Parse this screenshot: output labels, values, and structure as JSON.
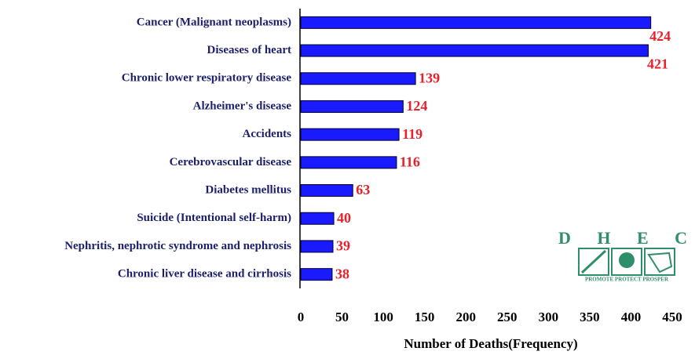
{
  "chart_data": {
    "type": "bar",
    "orientation": "horizontal",
    "categories": [
      "Cancer (Malignant neoplasms)",
      "Diseases of heart",
      "Chronic lower respiratory disease",
      "Alzheimer's disease",
      "Accidents",
      "Cerebrovascular disease",
      "Diabetes mellitus",
      "Suicide (Intentional self-harm)",
      "Nephritis, nephrotic syndrome and nephrosis",
      "Chronic liver disease and cirrhosis"
    ],
    "values": [
      424,
      421,
      139,
      124,
      119,
      116,
      63,
      40,
      39,
      38
    ],
    "color": "#1a1aff",
    "xlabel": "Number of Deaths(Frequency)",
    "xlim": [
      0,
      450
    ],
    "xticks": [
      0,
      50,
      100,
      150,
      200,
      250,
      300,
      350,
      400,
      450
    ]
  },
  "logo": {
    "letters": "D H E C",
    "tagline": "PROMOTE PROTECT PROSPER"
  }
}
